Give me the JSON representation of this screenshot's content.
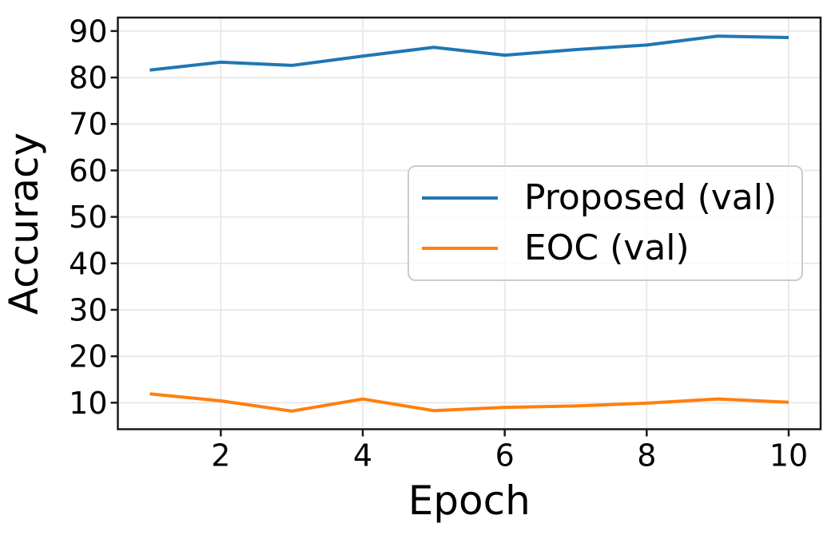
{
  "chart_data": {
    "type": "line",
    "title": "",
    "xlabel": "Epoch",
    "ylabel": "Accuracy",
    "x": [
      1,
      2,
      3,
      4,
      5,
      6,
      7,
      8,
      9,
      10
    ],
    "series": [
      {
        "name": "Proposed (val)",
        "color": "#1f77b4",
        "values": [
          81.6,
          83.3,
          82.6,
          84.6,
          86.5,
          84.8,
          86.0,
          87.0,
          88.9,
          88.6
        ]
      },
      {
        "name": "EOC (val)",
        "color": "#ff7f0e",
        "values": [
          11.9,
          10.4,
          8.2,
          10.8,
          8.3,
          9.0,
          9.3,
          9.9,
          10.8,
          10.1
        ]
      }
    ],
    "xticks": [
      2,
      4,
      6,
      8,
      10
    ],
    "yticks": [
      10,
      20,
      30,
      40,
      50,
      60,
      70,
      80,
      90
    ],
    "xlim": [
      0.55,
      10.45
    ],
    "ylim": [
      4.3,
      92.9
    ],
    "grid": true,
    "legend_position": "center-right"
  },
  "colors": {
    "grid": "#e8e8e8",
    "spine": "#1a1a1a",
    "tick": "#1a1a1a",
    "text": "#000000",
    "legend_border": "#cccccc",
    "legend_background": "rgba(255,255,255,0.8)"
  }
}
